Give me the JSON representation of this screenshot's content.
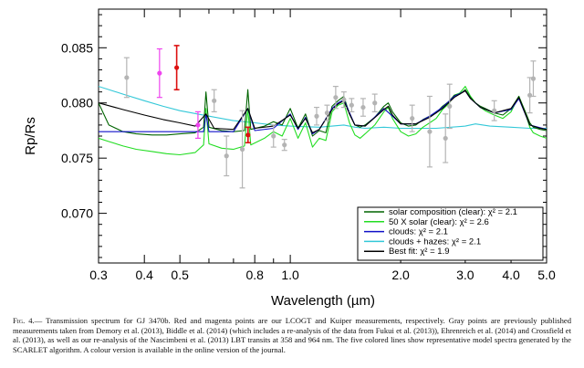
{
  "figure": {
    "caption_label": "Fig. 4.",
    "caption_text": "— Transmission spectrum for GJ 3470b. Red and magenta points are our LCOGT and Kuiper measurements, respectively. Gray points are previously published measurements taken from Demory et al. (2013), Biddle et al. (2014) (which includes a re-analysis of the data from Fukui et al. (2013)), Ehrenreich et al. (2014) and Crossfield et al. (2013), as well as our re-analysis of the Nascimbeni et al. (2013) LBT transits at 358 and 964 nm. The five colored lines show representative model spectra generated by the SCARLET algorithm. A colour version is available in the online version of the journal."
  },
  "chart_data": {
    "type": "line",
    "xlabel": "Wavelength (µm)",
    "ylabel": "Rp/Rs",
    "xscale": "log",
    "xlim": [
      0.3,
      5.0
    ],
    "ylim": [
      0.0655,
      0.0885
    ],
    "x_ticks": [
      "0.3",
      "0.4",
      "0.5",
      "0.8",
      "1.0",
      "2.0",
      "3.0",
      "4.0",
      "5.0"
    ],
    "x_tick_values": [
      0.3,
      0.4,
      0.5,
      0.8,
      1.0,
      2.0,
      3.0,
      4.0,
      5.0
    ],
    "y_ticks": [
      "0.070",
      "0.075",
      "0.080",
      "0.085"
    ],
    "y_tick_values": [
      0.07,
      0.075,
      0.08,
      0.085
    ],
    "legend_position": "lower-right",
    "colors": {
      "solar": "#006400",
      "solar50": "#22dd22",
      "clouds": "#1010c8",
      "hazes": "#33c8d8",
      "best": "#000000",
      "gray": "#b4b4b4",
      "red": "#dd1010",
      "magenta": "#ee44ee"
    },
    "series": [
      {
        "key": "solar",
        "label": "solar composition (clear): χ² = 2.1",
        "x": [
          0.3,
          0.32,
          0.35,
          0.38,
          0.42,
          0.46,
          0.5,
          0.55,
          0.58,
          0.589,
          0.6,
          0.65,
          0.7,
          0.75,
          0.766,
          0.78,
          0.85,
          0.9,
          0.95,
          1.0,
          1.05,
          1.1,
          1.15,
          1.2,
          1.25,
          1.3,
          1.35,
          1.4,
          1.45,
          1.5,
          1.55,
          1.6,
          1.7,
          1.8,
          1.85,
          1.9,
          2.0,
          2.1,
          2.2,
          2.3,
          2.4,
          2.5,
          2.6,
          2.7,
          2.8,
          2.9,
          3.0,
          3.1,
          3.2,
          3.3,
          3.4,
          3.6,
          3.8,
          4.0,
          4.2,
          4.4,
          4.5,
          4.6,
          4.8,
          5.0
        ],
        "y": [
          0.08,
          0.078,
          0.0774,
          0.0772,
          0.0771,
          0.0771,
          0.0772,
          0.0773,
          0.0778,
          0.081,
          0.0778,
          0.0775,
          0.0774,
          0.0775,
          0.0812,
          0.0776,
          0.0779,
          0.0783,
          0.078,
          0.0795,
          0.0777,
          0.079,
          0.077,
          0.0775,
          0.0773,
          0.0797,
          0.0802,
          0.0806,
          0.079,
          0.078,
          0.0778,
          0.078,
          0.0787,
          0.0797,
          0.08,
          0.0792,
          0.0782,
          0.0779,
          0.078,
          0.0785,
          0.0788,
          0.0791,
          0.0797,
          0.0801,
          0.0807,
          0.0808,
          0.0812,
          0.0805,
          0.08,
          0.0797,
          0.0795,
          0.0791,
          0.0789,
          0.0795,
          0.0806,
          0.079,
          0.0782,
          0.0778,
          0.0776,
          0.0775
        ]
      },
      {
        "key": "solar50",
        "label": "50 X solar (clear): χ² = 2.6",
        "x": [
          0.3,
          0.32,
          0.35,
          0.38,
          0.42,
          0.46,
          0.5,
          0.55,
          0.58,
          0.589,
          0.6,
          0.65,
          0.7,
          0.75,
          0.766,
          0.78,
          0.85,
          0.9,
          0.95,
          1.0,
          1.05,
          1.1,
          1.15,
          1.2,
          1.25,
          1.3,
          1.35,
          1.4,
          1.45,
          1.5,
          1.55,
          1.6,
          1.7,
          1.8,
          1.85,
          1.9,
          2.0,
          2.1,
          2.2,
          2.3,
          2.4,
          2.5,
          2.6,
          2.7,
          2.8,
          2.9,
          3.0,
          3.1,
          3.2,
          3.3,
          3.4,
          3.6,
          3.8,
          4.0,
          4.2,
          4.4,
          4.5,
          4.6,
          4.8,
          5.0
        ],
        "y": [
          0.0768,
          0.0765,
          0.0761,
          0.0758,
          0.0756,
          0.0754,
          0.0753,
          0.0755,
          0.0762,
          0.0795,
          0.0763,
          0.0759,
          0.0758,
          0.0761,
          0.0795,
          0.0762,
          0.0768,
          0.0774,
          0.077,
          0.0786,
          0.0768,
          0.0782,
          0.076,
          0.0768,
          0.0766,
          0.0792,
          0.0798,
          0.08,
          0.0782,
          0.0771,
          0.0768,
          0.0772,
          0.078,
          0.0792,
          0.0796,
          0.0786,
          0.0774,
          0.077,
          0.0772,
          0.0778,
          0.0782,
          0.0786,
          0.0794,
          0.0799,
          0.0807,
          0.0809,
          0.0815,
          0.0806,
          0.08,
          0.0796,
          0.0793,
          0.0789,
          0.0786,
          0.0792,
          0.0806,
          0.0788,
          0.0778,
          0.0773,
          0.077,
          0.0768
        ]
      },
      {
        "key": "clouds",
        "label": "clouds: χ² = 2.1",
        "x": [
          0.3,
          0.35,
          0.4,
          0.5,
          0.58,
          0.589,
          0.6,
          0.7,
          0.766,
          0.8,
          0.9,
          1.0,
          1.05,
          1.1,
          1.15,
          1.2,
          1.3,
          1.35,
          1.4,
          1.5,
          1.6,
          1.8,
          1.9,
          2.0,
          2.2,
          2.4,
          2.6,
          2.8,
          3.0,
          3.1,
          3.3,
          3.6,
          4.0,
          4.2,
          4.5,
          5.0
        ],
        "y": [
          0.0774,
          0.0774,
          0.0774,
          0.0774,
          0.0774,
          0.079,
          0.0774,
          0.0774,
          0.0795,
          0.0775,
          0.0777,
          0.079,
          0.0776,
          0.0787,
          0.0772,
          0.0776,
          0.0795,
          0.08,
          0.0803,
          0.078,
          0.0779,
          0.0795,
          0.0788,
          0.0781,
          0.0781,
          0.0788,
          0.0796,
          0.0806,
          0.0811,
          0.0804,
          0.0796,
          0.0791,
          0.0794,
          0.0804,
          0.078,
          0.0776
        ]
      },
      {
        "key": "hazes",
        "label": "clouds + hazes: χ² = 2.1",
        "x": [
          0.3,
          0.35,
          0.4,
          0.45,
          0.5,
          0.6,
          0.7,
          0.8,
          0.9,
          1.0,
          1.2,
          1.4,
          1.5,
          1.6,
          1.8,
          2.0,
          2.5,
          3.0,
          3.2,
          3.5,
          4.0,
          4.5,
          5.0
        ],
        "y": [
          0.0815,
          0.0808,
          0.0802,
          0.0797,
          0.0793,
          0.0788,
          0.0784,
          0.0782,
          0.078,
          0.0779,
          0.0778,
          0.078,
          0.0778,
          0.0777,
          0.0778,
          0.0777,
          0.0777,
          0.0779,
          0.0781,
          0.0779,
          0.0778,
          0.0777,
          0.0777
        ]
      },
      {
        "key": "best",
        "label": "Best fit: χ² = 1.9",
        "x": [
          0.3,
          0.35,
          0.4,
          0.45,
          0.5,
          0.55,
          0.589,
          0.62,
          0.7,
          0.766,
          0.8,
          0.9,
          1.0,
          1.05,
          1.1,
          1.15,
          1.2,
          1.3,
          1.35,
          1.4,
          1.45,
          1.5,
          1.6,
          1.8,
          1.85,
          1.9,
          2.0,
          2.2,
          2.4,
          2.6,
          2.8,
          3.0,
          3.1,
          3.3,
          3.6,
          4.0,
          4.2,
          4.4,
          4.5,
          4.8,
          5.0
        ],
        "y": [
          0.08,
          0.0794,
          0.0789,
          0.0785,
          0.0782,
          0.0779,
          0.079,
          0.0777,
          0.0776,
          0.0795,
          0.0777,
          0.0779,
          0.0789,
          0.0777,
          0.0786,
          0.0773,
          0.0776,
          0.0794,
          0.0799,
          0.0802,
          0.079,
          0.078,
          0.0779,
          0.0794,
          0.0797,
          0.0789,
          0.0781,
          0.0781,
          0.0787,
          0.0795,
          0.0805,
          0.0811,
          0.0804,
          0.0796,
          0.0791,
          0.0795,
          0.0805,
          0.0788,
          0.078,
          0.0777,
          0.0776
        ]
      }
    ],
    "points": [
      {
        "group": "gray",
        "x": 0.358,
        "y": 0.0823,
        "err": 0.0018
      },
      {
        "group": "gray",
        "x": 0.62,
        "y": 0.0802,
        "err": 0.001
      },
      {
        "group": "gray",
        "x": 0.67,
        "y": 0.0752,
        "err": 0.0018
      },
      {
        "group": "gray",
        "x": 0.74,
        "y": 0.0758,
        "err": 0.0035
      },
      {
        "group": "gray",
        "x": 0.9,
        "y": 0.077,
        "err": 0.001
      },
      {
        "group": "gray",
        "x": 0.964,
        "y": 0.0762,
        "err": 0.0005
      },
      {
        "group": "gray",
        "x": 1.18,
        "y": 0.0788,
        "err": 0.0008
      },
      {
        "group": "gray",
        "x": 1.26,
        "y": 0.0791,
        "err": 0.0007
      },
      {
        "group": "gray",
        "x": 1.33,
        "y": 0.0805,
        "err": 0.001
      },
      {
        "group": "gray",
        "x": 1.4,
        "y": 0.0803,
        "err": 0.0007
      },
      {
        "group": "gray",
        "x": 1.47,
        "y": 0.0798,
        "err": 0.0006
      },
      {
        "group": "gray",
        "x": 1.58,
        "y": 0.0796,
        "err": 0.0008
      },
      {
        "group": "gray",
        "x": 1.7,
        "y": 0.08,
        "err": 0.0008
      },
      {
        "group": "gray",
        "x": 2.15,
        "y": 0.0786,
        "err": 0.0012
      },
      {
        "group": "gray",
        "x": 2.4,
        "y": 0.0774,
        "err": 0.0032
      },
      {
        "group": "gray",
        "x": 2.65,
        "y": 0.0768,
        "err": 0.0022
      },
      {
        "group": "gray",
        "x": 2.72,
        "y": 0.0797,
        "err": 0.002
      },
      {
        "group": "gray",
        "x": 3.6,
        "y": 0.0793,
        "err": 0.0009
      },
      {
        "group": "gray",
        "x": 4.5,
        "y": 0.0807,
        "err": 0.0016
      },
      {
        "group": "gray",
        "x": 4.6,
        "y": 0.0822,
        "err": 0.0016
      },
      {
        "group": "magenta",
        "x": 0.44,
        "y": 0.0827,
        "err": 0.0022
      },
      {
        "group": "magenta",
        "x": 0.56,
        "y": 0.078,
        "err": 0.0012
      },
      {
        "group": "red",
        "x": 0.49,
        "y": 0.0832,
        "err": 0.002
      },
      {
        "group": "red",
        "x": 0.767,
        "y": 0.0771,
        "err": 0.0007
      }
    ]
  }
}
